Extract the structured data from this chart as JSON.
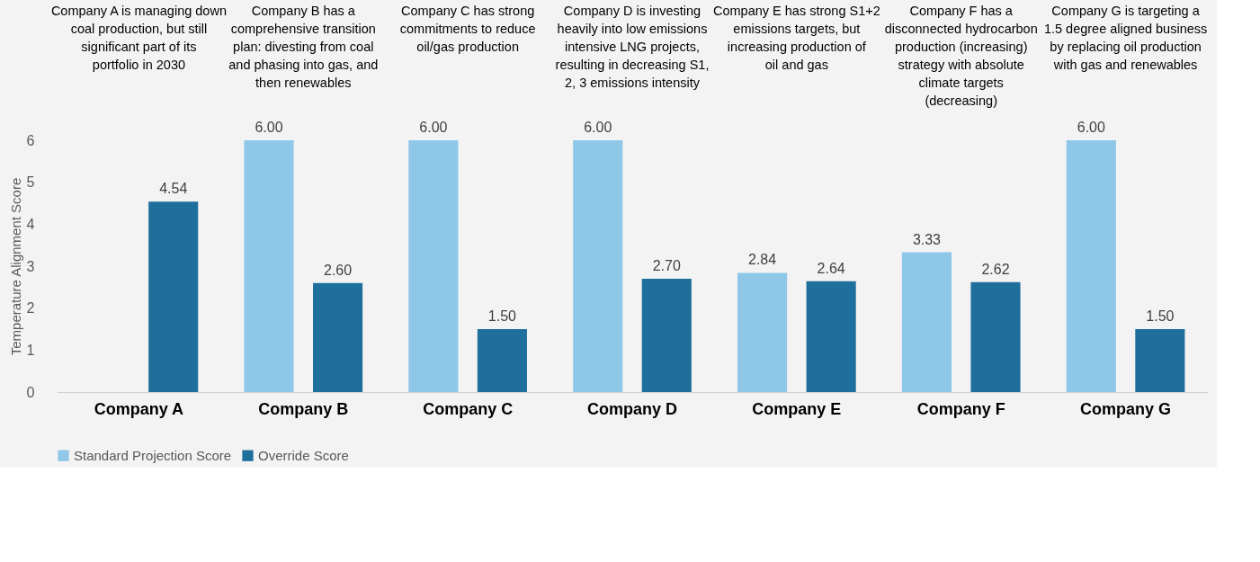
{
  "chart_data": {
    "type": "bar",
    "ylabel": "Temperature Alignment Score",
    "categories": [
      "Company A",
      "Company B",
      "Company C",
      "Company D",
      "Company E",
      "Company F",
      "Company G"
    ],
    "series": [
      {
        "name": "Standard Projection Score",
        "color": "#8ec7e8",
        "values": [
          null,
          6.0,
          6.0,
          6.0,
          2.84,
          3.33,
          6.0
        ],
        "value_labels": [
          null,
          "6.00",
          "6.00",
          "6.00",
          "2.84",
          "3.33",
          "6.00"
        ]
      },
      {
        "name": "Override Score",
        "color": "#1f6f9c",
        "values": [
          4.54,
          2.6,
          1.5,
          2.7,
          2.64,
          2.62,
          1.5
        ],
        "value_labels": [
          "4.54",
          "2.60",
          "1.50",
          "2.70",
          "2.64",
          "2.62",
          "1.50"
        ]
      }
    ],
    "ylim": [
      0,
      6
    ],
    "yticks": [
      0,
      1,
      2,
      3,
      4,
      5,
      6
    ],
    "grid": false,
    "legend": "bottom",
    "annotations": [
      "Company A is managing down coal production, but still significant part of its portfolio in 2030",
      "Company B has a comprehensive transition plan: divesting from coal and phasing into gas, and then renewables",
      "Company C has strong commitments to reduce oil/gas production",
      "Company D is investing heavily into low emissions intensive LNG projects, resulting in decreasing S1, 2, 3 emissions intensity",
      "Company E has strong S1+2 emissions targets, but increasing production of oil and gas",
      "Company F has a disconnected hydrocarbon production (increasing) strategy with absolute climate targets (decreasing)",
      "Company G is targeting a 1.5 degree aligned business by replacing oil production with gas and renewables"
    ]
  }
}
